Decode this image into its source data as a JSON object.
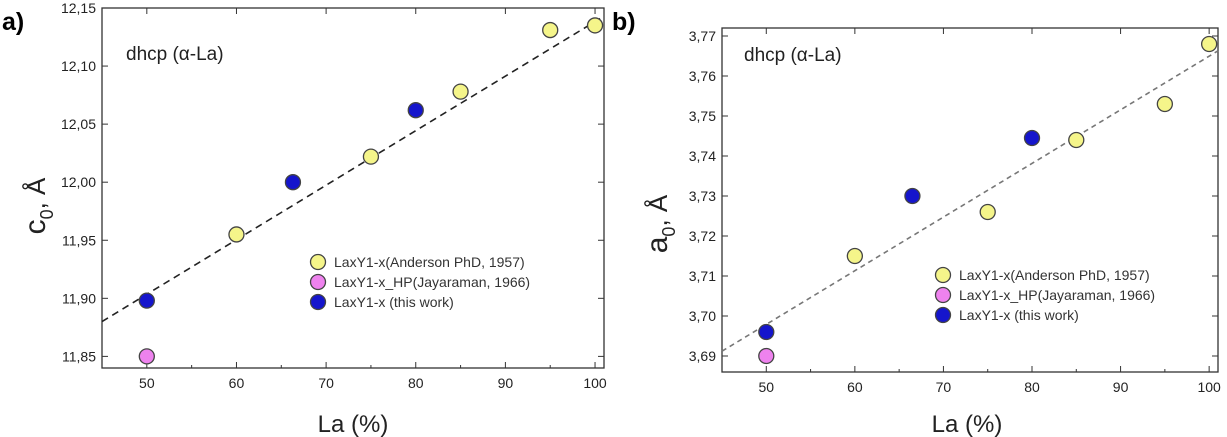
{
  "chart_data": [
    {
      "type": "scatter",
      "panel_label": "a)",
      "annotation": "dhcp (α-La)",
      "xlabel": "La (%)",
      "ylabel_main": "c",
      "ylabel_sub": "0",
      "ylabel_rest": ", Å",
      "xlim": [
        45,
        101
      ],
      "ylim": [
        11.84,
        12.15
      ],
      "xticks": [
        50,
        60,
        70,
        80,
        90,
        100
      ],
      "yticks": [
        11.85,
        11.9,
        11.95,
        12.0,
        12.05,
        12.1,
        12.15
      ],
      "xtick_labels": [
        "50",
        "60",
        "70",
        "80",
        "90",
        "100"
      ],
      "ytick_labels": [
        "11,85",
        "11,90",
        "11,95",
        "12,00",
        "12,05",
        "12,10",
        "12,15"
      ],
      "fit_line": {
        "x": [
          45,
          101
        ],
        "y": [
          11.88,
          12.143
        ]
      },
      "legend_position": "bottom-right",
      "series": [
        {
          "name": "LaxY1-x(Anderson PhD, 1957)",
          "color": "#f5f58a",
          "x": [
            60,
            75,
            85,
            95,
            100
          ],
          "y": [
            11.955,
            12.022,
            12.078,
            12.131,
            12.135
          ]
        },
        {
          "name": "LaxY1-x_HP(Jayaraman, 1966)",
          "color": "#ee82ee",
          "x": [
            50
          ],
          "y": [
            11.85
          ]
        },
        {
          "name": "LaxY1-x (this work)",
          "color": "#1515cc",
          "x": [
            50,
            66.3,
            80
          ],
          "y": [
            11.898,
            12.0,
            12.062
          ]
        }
      ]
    },
    {
      "type": "scatter",
      "panel_label": "b)",
      "annotation": "dhcp (α-La)",
      "xlabel": "La (%)",
      "ylabel_main": "a",
      "ylabel_sub": "0",
      "ylabel_rest": ", Å",
      "xlim": [
        45,
        101
      ],
      "ylim": [
        3.686,
        3.772
      ],
      "xticks": [
        50,
        60,
        70,
        80,
        90,
        100
      ],
      "yticks": [
        3.69,
        3.7,
        3.71,
        3.72,
        3.73,
        3.74,
        3.75,
        3.76,
        3.77
      ],
      "xtick_labels": [
        "50",
        "60",
        "70",
        "80",
        "90",
        "100"
      ],
      "ytick_labels": [
        "3,69",
        "3,70",
        "3,71",
        "3,72",
        "3,73",
        "3,74",
        "3,75",
        "3,76",
        "3,77"
      ],
      "fit_line": {
        "x": [
          45,
          101
        ],
        "y": [
          3.6912,
          3.7663
        ]
      },
      "legend_position": "bottom-right",
      "series": [
        {
          "name": "LaxY1-x(Anderson PhD, 1957)",
          "color": "#f5f58a",
          "x": [
            60,
            75,
            85,
            95,
            100
          ],
          "y": [
            3.715,
            3.726,
            3.744,
            3.753,
            3.768
          ]
        },
        {
          "name": "LaxY1-x_HP(Jayaraman, 1966)",
          "color": "#ee82ee",
          "x": [
            50
          ],
          "y": [
            3.69
          ]
        },
        {
          "name": "LaxY1-x  (this work)",
          "color": "#1515cc",
          "x": [
            50,
            66.5,
            80
          ],
          "y": [
            3.696,
            3.73,
            3.7445
          ]
        }
      ]
    }
  ]
}
